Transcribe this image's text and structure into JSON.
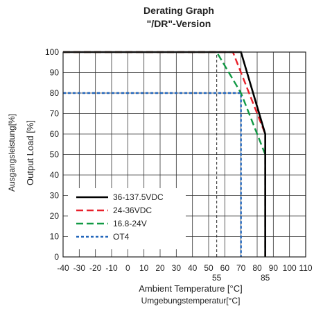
{
  "chart_data": {
    "type": "line",
    "title": "Derating Graph",
    "subtitle": "\"/DR\"-Version",
    "xlabel": "Ambient Temperature [°C]",
    "xlabel_secondary": "Umgebungstemperatur[°C]",
    "ylabel": "Output Load [%]",
    "ylabel_secondary": "Ausgangsleistung[%]",
    "xlim": [
      -40,
      110
    ],
    "ylim": [
      0,
      100
    ],
    "x_ticks": [
      -40,
      -30,
      -20,
      -10,
      0,
      10,
      20,
      30,
      40,
      50,
      60,
      70,
      80,
      90,
      100,
      110
    ],
    "x_tick_labels": [
      "-40",
      "-30",
      "-20",
      "-10",
      "0",
      "10",
      "20",
      "30",
      "40",
      "50",
      "60",
      "70",
      "80",
      "90",
      "100",
      "110"
    ],
    "extra_x_ticks": [
      55,
      85
    ],
    "extra_x_tick_labels": [
      "55",
      "85"
    ],
    "y_ticks": [
      0,
      10,
      20,
      30,
      40,
      50,
      60,
      70,
      80,
      90,
      100
    ],
    "y_tick_labels": [
      "0",
      "10",
      "20",
      "30",
      "40",
      "50",
      "60",
      "70",
      "80",
      "90",
      "100"
    ],
    "grid": true,
    "legend_position": "bottom-left",
    "reference_lines": [
      {
        "orientation": "vertical",
        "x": 55,
        "y_range": [
          0,
          100
        ],
        "style": "dashed",
        "color": "#222222"
      }
    ],
    "series": [
      {
        "name": "36-137.5VDC",
        "color": "#000000",
        "style": "solid",
        "x": [
          -40,
          70,
          85,
          85
        ],
        "y": [
          100,
          100,
          60,
          0
        ]
      },
      {
        "name": "24-36VDC",
        "color": "#e8202a",
        "style": "dashed",
        "x": [
          -40,
          65,
          85,
          85
        ],
        "y": [
          100,
          100,
          60,
          0
        ]
      },
      {
        "name": "16.8-24V",
        "color": "#119944",
        "style": "dashed",
        "x": [
          -40,
          55,
          70,
          85,
          85
        ],
        "y": [
          100,
          100,
          80,
          50,
          0
        ]
      },
      {
        "name": "OT4",
        "color": "#2266bb",
        "style": "dotted",
        "x": [
          -40,
          70,
          70
        ],
        "y": [
          80,
          80,
          0
        ]
      }
    ]
  }
}
